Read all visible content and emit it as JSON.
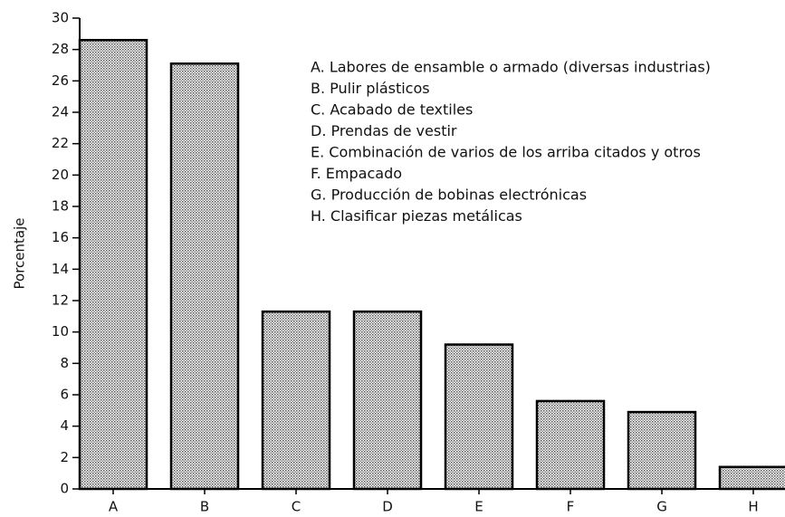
{
  "chart_data": {
    "type": "bar",
    "y_label": "Porcentaje",
    "categories": [
      "A",
      "B",
      "C",
      "D",
      "E",
      "F",
      "G",
      "H"
    ],
    "values": [
      28.6,
      27.1,
      11.3,
      11.3,
      9.2,
      5.6,
      4.9,
      1.4
    ],
    "color": "#bdbdbd",
    "ylim": [
      0,
      30
    ],
    "yticks": [
      0,
      2,
      4,
      6,
      8,
      10,
      12,
      14,
      16,
      18,
      20,
      22,
      24,
      26,
      28,
      30
    ],
    "legend_items": [
      "A. Labores de ensamble o armado (diversas industrias)",
      "B. Pulir plásticos",
      "C. Acabado de textiles",
      "D. Prendas de vestir",
      "E. Combinación de varios de los arriba citados y otros",
      "F. Empacado",
      "G. Producción de bobinas electrónicas",
      "H. Clasificar piezas metálicas"
    ]
  }
}
